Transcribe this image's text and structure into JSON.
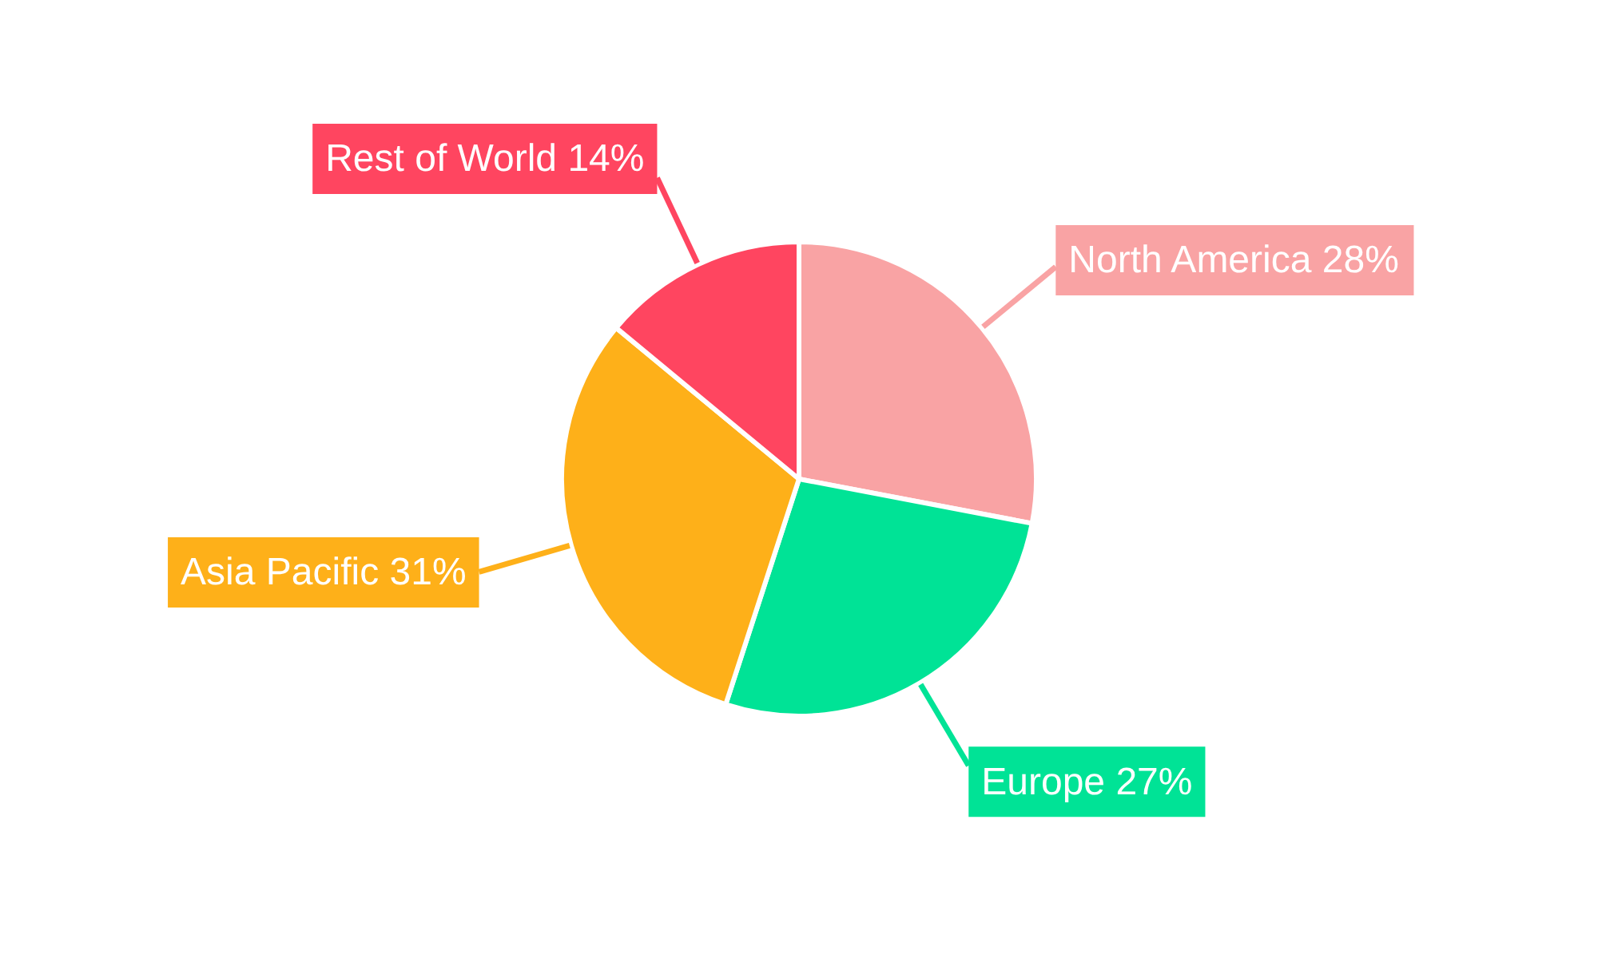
{
  "chart_data": {
    "type": "pie",
    "categories": [
      "North America",
      "Europe",
      "Asia Pacific",
      "Rest of World"
    ],
    "values": [
      28,
      27,
      31,
      14
    ],
    "colors": [
      "#f9a3a4",
      "#00e396",
      "#feb019",
      "#ff4560"
    ],
    "value_labels": [
      "28%",
      "27%",
      "31%",
      "14%"
    ]
  }
}
